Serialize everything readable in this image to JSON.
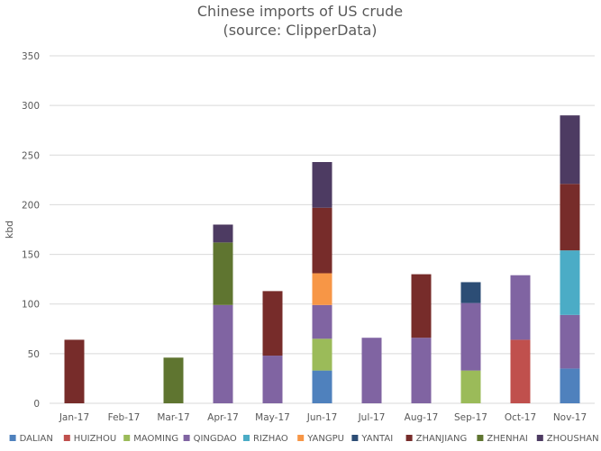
{
  "chart_data": {
    "type": "bar",
    "stacked": true,
    "title": "Chinese imports of US crude",
    "subtitle": "(source: ClipperData)",
    "xlabel": "",
    "ylabel": "kbd",
    "ylim": [
      0,
      350
    ],
    "yticks": [
      0,
      50,
      100,
      150,
      200,
      250,
      300,
      350
    ],
    "grid": true,
    "legend_position": "bottom",
    "categories": [
      "Jan-17",
      "Feb-17",
      "Mar-17",
      "Apr-17",
      "May-17",
      "Jun-17",
      "Jul-17",
      "Aug-17",
      "Sep-17",
      "Oct-17",
      "Nov-17"
    ],
    "series": [
      {
        "name": "DALIAN",
        "color": "#4f81bd",
        "values": [
          0,
          0,
          0,
          0,
          0,
          33,
          0,
          0,
          0,
          0,
          35
        ]
      },
      {
        "name": "HUIZHOU",
        "color": "#c0504d",
        "values": [
          0,
          0,
          0,
          0,
          0,
          0,
          0,
          0,
          0,
          64,
          0
        ]
      },
      {
        "name": "MAOMING",
        "color": "#9bbb59",
        "values": [
          0,
          0,
          0,
          0,
          0,
          32,
          0,
          0,
          33,
          0,
          0
        ]
      },
      {
        "name": "QINGDAO",
        "color": "#8064a2",
        "values": [
          0,
          0,
          0,
          99,
          48,
          34,
          66,
          66,
          68,
          65,
          54
        ]
      },
      {
        "name": "RIZHAO",
        "color": "#4bacc6",
        "values": [
          0,
          0,
          0,
          0,
          0,
          0,
          0,
          0,
          0,
          0,
          65
        ]
      },
      {
        "name": "YANGPU",
        "color": "#f79646",
        "values": [
          0,
          0,
          0,
          0,
          0,
          32,
          0,
          0,
          0,
          0,
          0
        ]
      },
      {
        "name": "YANTAI",
        "color": "#2c4d75",
        "values": [
          0,
          0,
          0,
          0,
          0,
          0,
          0,
          0,
          21,
          0,
          0
        ]
      },
      {
        "name": "ZHANJIANG",
        "color": "#772c2a",
        "values": [
          64,
          0,
          0,
          0,
          65,
          66,
          0,
          64,
          0,
          0,
          67
        ]
      },
      {
        "name": "ZHENHAI",
        "color": "#5f7530",
        "values": [
          0,
          0,
          46,
          63,
          0,
          0,
          0,
          0,
          0,
          0,
          0
        ]
      },
      {
        "name": "ZHOUSHAN",
        "color": "#4d3b62",
        "values": [
          0,
          0,
          0,
          18,
          0,
          46,
          0,
          0,
          0,
          0,
          69
        ]
      }
    ]
  }
}
